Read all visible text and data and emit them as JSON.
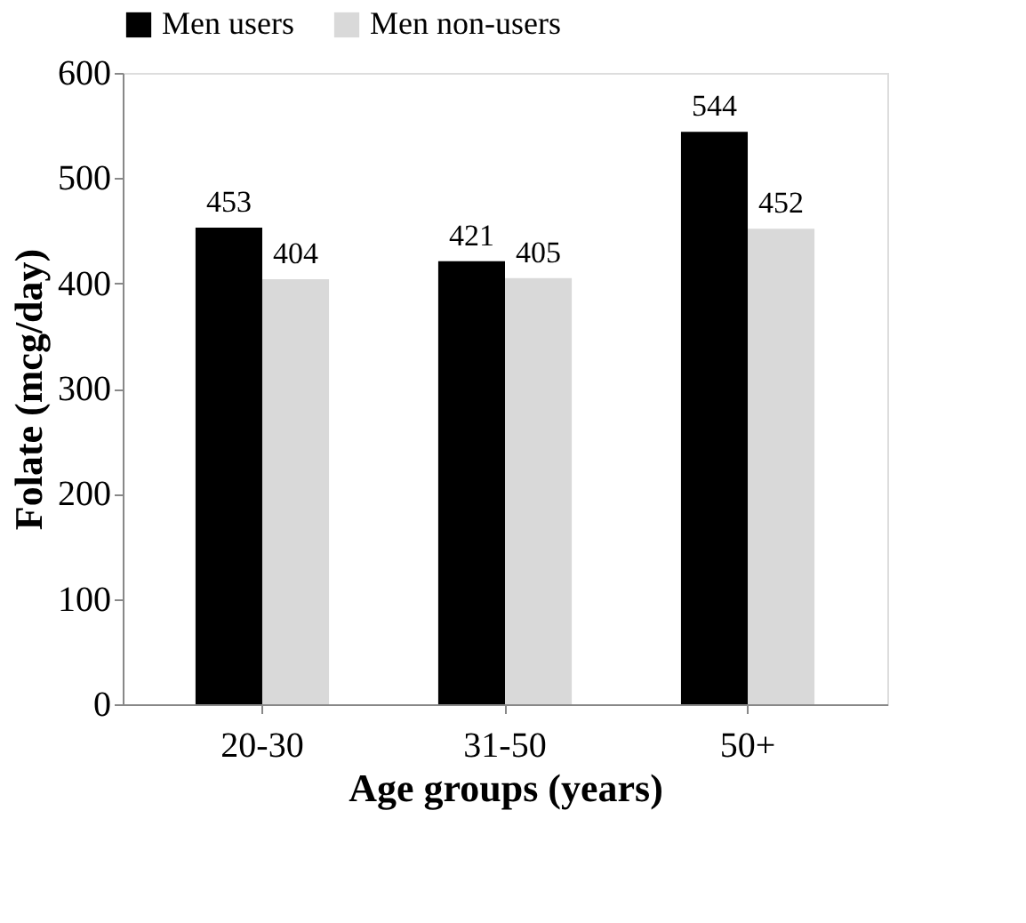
{
  "chart_data": {
    "type": "bar",
    "xlabel": "Age groups (years)",
    "ylabel": "Folate (mcg/day)",
    "categories": [
      "20-30",
      "31-50",
      "50+"
    ],
    "series": [
      {
        "name": "Men users",
        "color": "#000000",
        "values": [
          453,
          421,
          544
        ]
      },
      {
        "name": "Men non-users",
        "color": "#d9d9d9",
        "values": [
          404,
          405,
          452
        ]
      }
    ],
    "ylim": [
      0,
      600
    ],
    "yticks": [
      0,
      100,
      200,
      300,
      400,
      500,
      600
    ],
    "grid": false,
    "legend": "top",
    "data_labels": true
  }
}
